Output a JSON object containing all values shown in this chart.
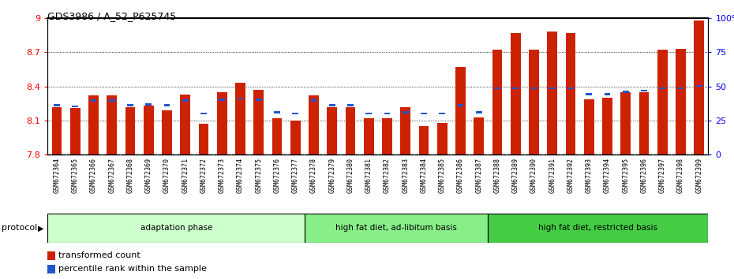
{
  "title": "GDS3986 / A_52_P625745",
  "samples": [
    "GSM672364",
    "GSM672365",
    "GSM672366",
    "GSM672367",
    "GSM672368",
    "GSM672369",
    "GSM672370",
    "GSM672371",
    "GSM672372",
    "GSM672373",
    "GSM672374",
    "GSM672375",
    "GSM672376",
    "GSM672377",
    "GSM672378",
    "GSM672379",
    "GSM672380",
    "GSM672381",
    "GSM672382",
    "GSM672383",
    "GSM672384",
    "GSM672385",
    "GSM672386",
    "GSM672387",
    "GSM672388",
    "GSM672389",
    "GSM672390",
    "GSM672391",
    "GSM672392",
    "GSM672393",
    "GSM672394",
    "GSM672395",
    "GSM672396",
    "GSM672397",
    "GSM672398",
    "GSM672399"
  ],
  "bar_heights": [
    8.22,
    8.21,
    8.32,
    8.32,
    8.22,
    8.23,
    8.19,
    8.33,
    8.07,
    8.35,
    8.43,
    8.37,
    8.12,
    8.1,
    8.32,
    8.22,
    8.22,
    8.12,
    8.12,
    8.22,
    8.05,
    8.08,
    8.57,
    8.13,
    8.72,
    8.87,
    8.72,
    8.88,
    8.87,
    8.29,
    8.3,
    8.35,
    8.35,
    8.72,
    8.73,
    8.98
  ],
  "blue_heights": [
    8.225,
    8.215,
    8.27,
    8.27,
    8.225,
    8.235,
    8.225,
    8.27,
    8.155,
    8.275,
    8.285,
    8.275,
    8.165,
    8.155,
    8.27,
    8.225,
    8.225,
    8.155,
    8.155,
    8.165,
    8.155,
    8.155,
    8.225,
    8.165,
    8.375,
    8.375,
    8.375,
    8.375,
    8.375,
    8.325,
    8.325,
    8.345,
    8.355,
    8.375,
    8.375,
    8.395
  ],
  "bar_color": "#cc2200",
  "blue_color": "#2255cc",
  "ylim_left": [
    7.8,
    9.0
  ],
  "yticks_left": [
    7.8,
    8.1,
    8.4,
    8.7,
    9.0
  ],
  "ytick_labels_left": [
    "7.8",
    "8.1",
    "8.4",
    "8.7",
    "9"
  ],
  "ylim_right": [
    0,
    100
  ],
  "yticks_right": [
    0,
    25,
    50,
    75,
    100
  ],
  "ytick_labels_right": [
    "0",
    "25",
    "50",
    "75",
    "100%"
  ],
  "protocol_groups": [
    {
      "label": "adaptation phase",
      "start": 0,
      "end": 14,
      "color": "#ccffcc"
    },
    {
      "label": "high fat diet, ad-libitum basis",
      "start": 14,
      "end": 24,
      "color": "#88ee88"
    },
    {
      "label": "high fat diet, restricted basis",
      "start": 24,
      "end": 36,
      "color": "#44cc44"
    }
  ],
  "protocol_label": "protocol",
  "legend_items": [
    {
      "color": "#cc2200",
      "label": "transformed count"
    },
    {
      "color": "#2255cc",
      "label": "percentile rank within the sample"
    }
  ],
  "bar_width": 0.55,
  "bg_color": "#ffffff",
  "dotted_yticks": [
    8.1,
    8.4,
    8.7
  ],
  "xtick_label_bg": "#d8d8d8"
}
